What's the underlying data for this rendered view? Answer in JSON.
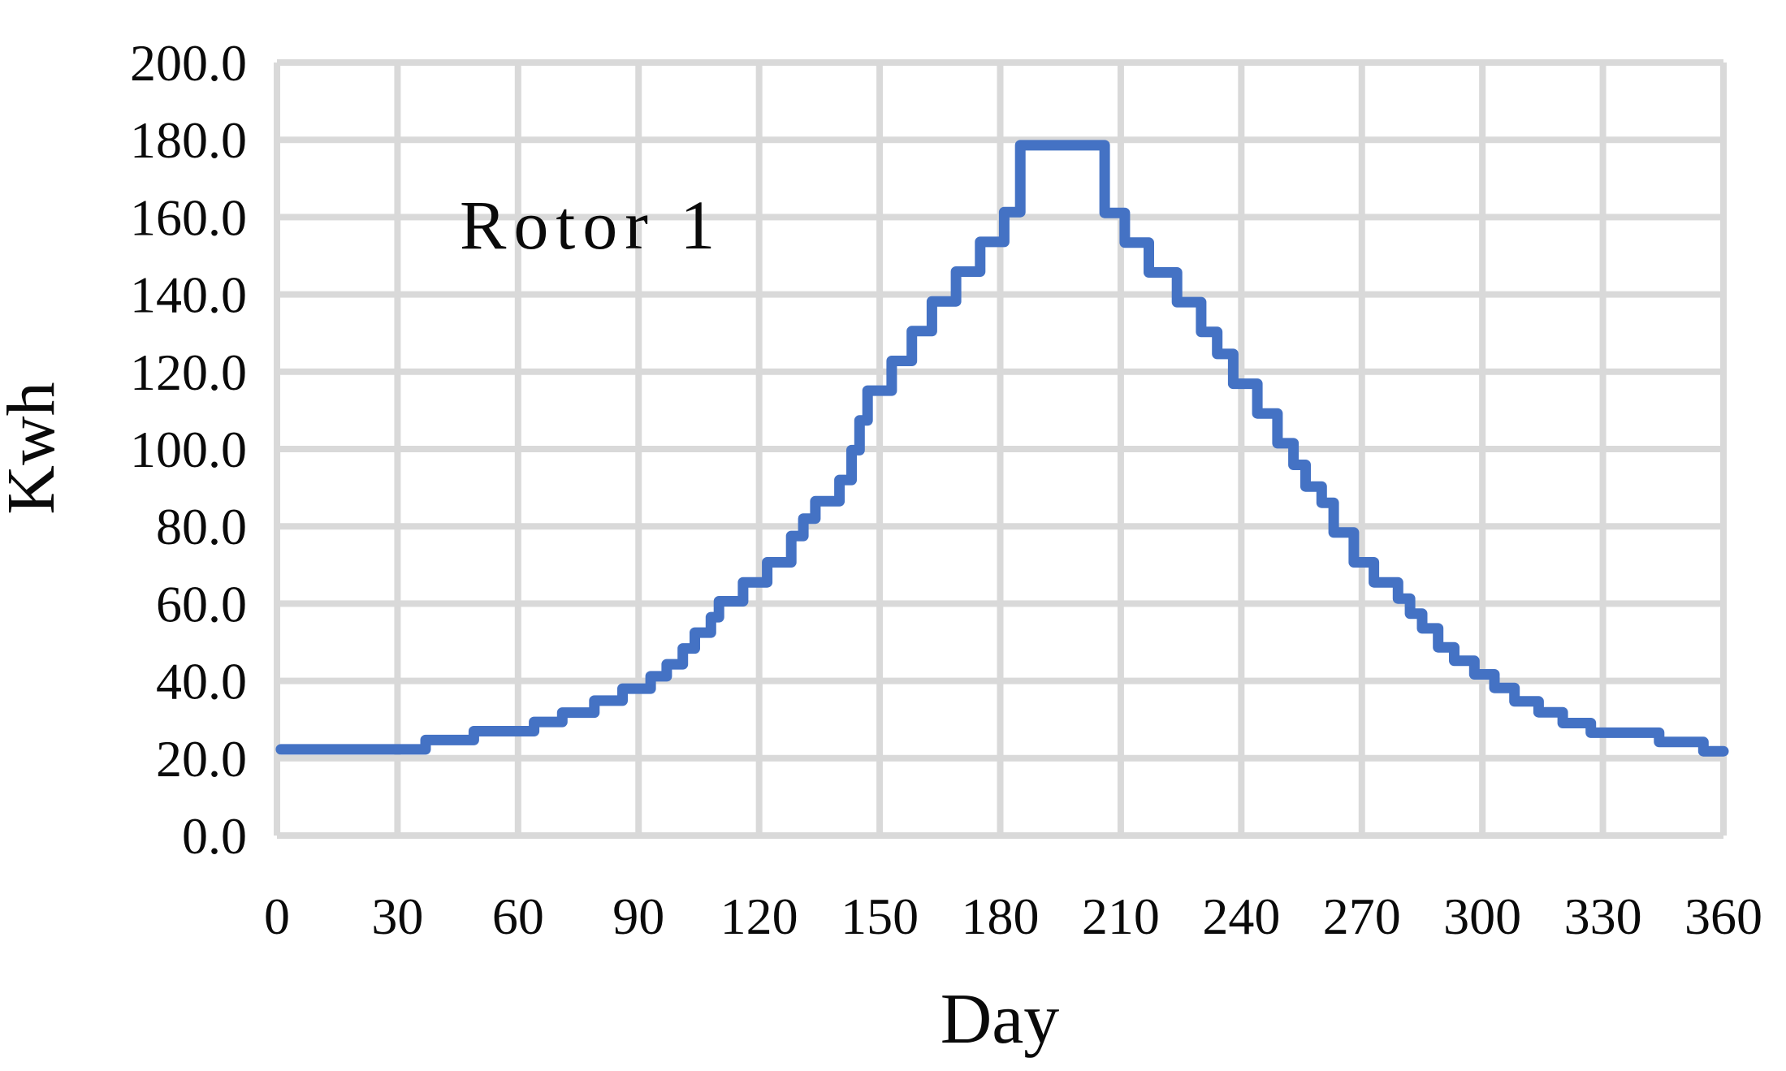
{
  "figure": {
    "annotation": "Rotor 1",
    "x_axis": {
      "label": "Day",
      "ticks": [
        "0",
        "30",
        "60",
        "90",
        "120",
        "150",
        "180",
        "210",
        "240",
        "270",
        "300",
        "330",
        "360"
      ]
    },
    "y_axis": {
      "label": "Kwh",
      "ticks": [
        "0.0",
        "20.0",
        "40.0",
        "60.0",
        "80.0",
        "100.0",
        "120.0",
        "140.0",
        "160.0",
        "180.0",
        "200.0"
      ]
    }
  },
  "chart_data": {
    "type": "line",
    "style": "step",
    "title": "Rotor 1",
    "xlabel": "Day",
    "ylabel": "Kwh",
    "xlim": [
      0,
      360
    ],
    "ylim": [
      0,
      200
    ],
    "x_tick_interval": 30,
    "y_tick_interval": 20,
    "grid": true,
    "legend_position": "none",
    "line_color": "#4472C4",
    "gridline_color": "#D9D9D9",
    "line_width": 13,
    "series": [
      {
        "name": "Rotor 1",
        "unit": "Kwh",
        "peak_value": 178.6,
        "peak_days": [
          185,
          206
        ],
        "baseline_value": 22.3,
        "segments_format": [
          "start_day",
          "end_day",
          "kwh"
        ],
        "segments": [
          [
            1,
            37,
            22.3
          ],
          [
            37,
            49,
            24.7
          ],
          [
            49,
            64,
            27.0
          ],
          [
            64,
            71,
            29.4
          ],
          [
            71,
            79,
            31.8
          ],
          [
            79,
            86,
            34.9
          ],
          [
            86,
            93,
            38.0
          ],
          [
            93,
            97,
            41.2
          ],
          [
            97,
            101,
            44.3
          ],
          [
            101,
            104,
            48.4
          ],
          [
            104,
            108,
            52.5
          ],
          [
            108,
            110,
            56.5
          ],
          [
            110,
            116,
            60.6
          ],
          [
            116,
            122,
            65.5
          ],
          [
            122,
            128,
            70.7
          ],
          [
            128,
            131,
            77.5
          ],
          [
            131,
            134,
            82.0
          ],
          [
            134,
            140,
            86.5
          ],
          [
            140,
            143,
            92.0
          ],
          [
            143,
            145,
            99.7
          ],
          [
            145,
            147,
            107.4
          ],
          [
            147,
            153,
            115.1
          ],
          [
            153,
            158,
            122.8
          ],
          [
            158,
            163,
            130.5
          ],
          [
            163,
            169,
            138.2
          ],
          [
            169,
            175,
            145.9
          ],
          [
            175,
            181,
            153.6
          ],
          [
            181,
            185,
            161.3
          ],
          [
            185,
            206,
            178.6
          ],
          [
            206,
            211,
            161.1
          ],
          [
            211,
            217,
            153.4
          ],
          [
            217,
            224,
            145.7
          ],
          [
            224,
            230,
            138.0
          ],
          [
            230,
            234,
            130.3
          ],
          [
            234,
            238,
            124.6
          ],
          [
            238,
            244,
            116.9
          ],
          [
            244,
            249,
            109.2
          ],
          [
            249,
            253,
            101.5
          ],
          [
            253,
            256,
            95.9
          ],
          [
            256,
            260,
            90.3
          ],
          [
            260,
            263,
            86.1
          ],
          [
            263,
            268,
            78.4
          ],
          [
            268,
            273,
            70.7
          ],
          [
            273,
            279,
            65.5
          ],
          [
            279,
            282,
            61.3
          ],
          [
            282,
            285,
            57.4
          ],
          [
            285,
            289,
            53.6
          ],
          [
            289,
            293,
            48.7
          ],
          [
            293,
            298,
            45.2
          ],
          [
            298,
            303,
            41.7
          ],
          [
            303,
            308,
            38.2
          ],
          [
            308,
            314,
            34.7
          ],
          [
            314,
            320,
            31.9
          ],
          [
            320,
            327,
            29.1
          ],
          [
            327,
            344,
            26.6
          ],
          [
            344,
            355,
            24.2
          ],
          [
            355,
            360,
            21.8
          ]
        ]
      }
    ]
  }
}
